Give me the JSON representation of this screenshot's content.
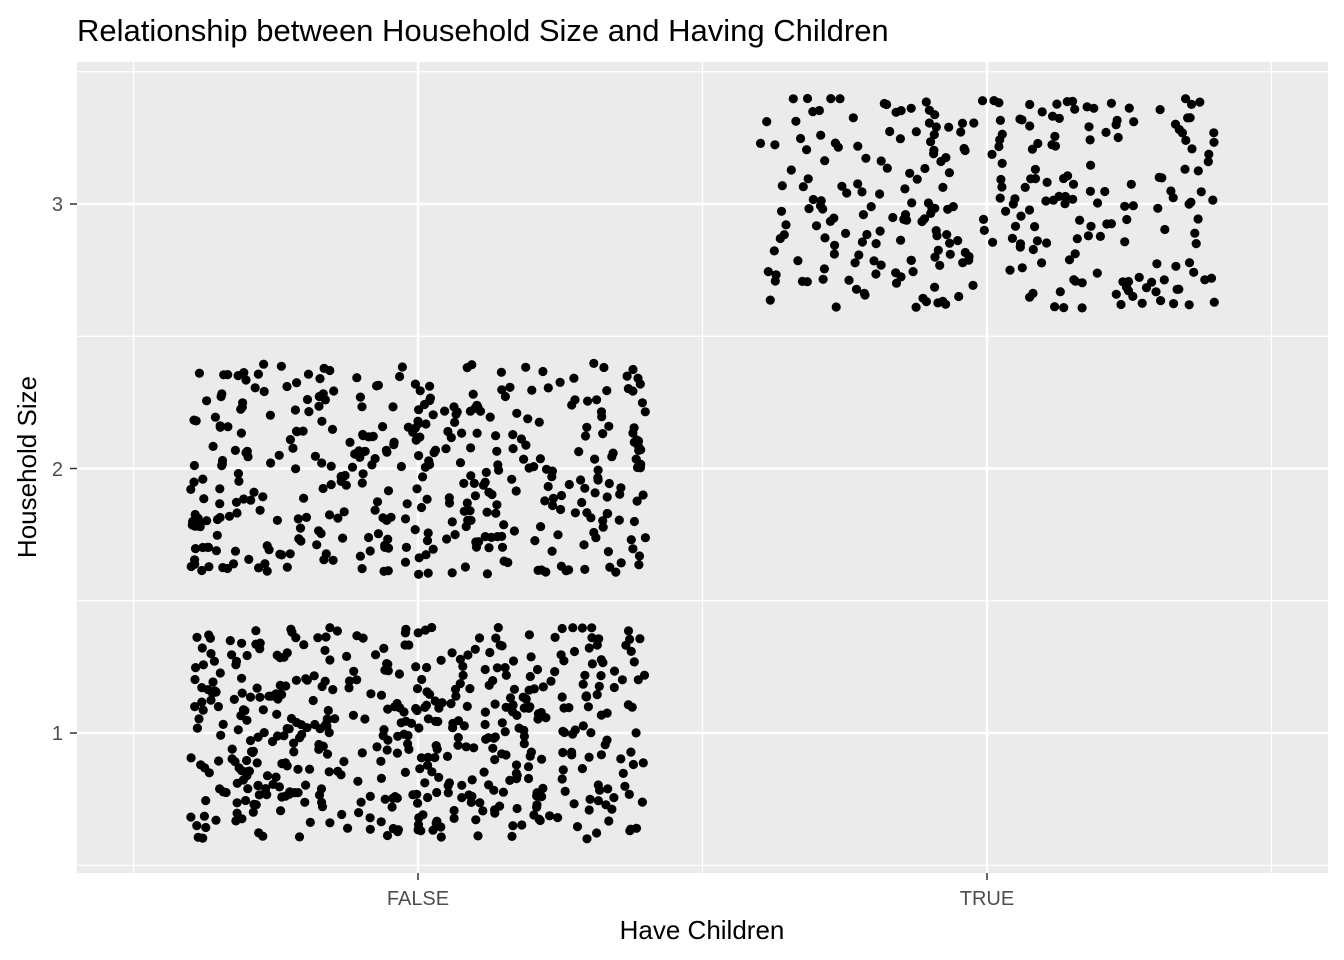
{
  "chart_data": {
    "type": "scatter",
    "jitter": true,
    "title": "Relationship between Household Size and Having Children",
    "xlabel": "Have Children",
    "ylabel": "Household Size",
    "categories": [
      "FALSE",
      "TRUE"
    ],
    "y_ticks": [
      1,
      2,
      3
    ],
    "ylim": [
      0.5,
      3.5
    ],
    "grid": true,
    "legend": "none",
    "colors": {
      "panel": "#ebebeb",
      "grid": "#ffffff",
      "point": "#000000",
      "tick_text": "#4d4d4d"
    },
    "groups": [
      {
        "x": "FALSE",
        "y": 1,
        "n": 500,
        "x_jitter": 0.4,
        "y_jitter": 0.4
      },
      {
        "x": "FALSE",
        "y": 2,
        "n": 400,
        "x_jitter": 0.4,
        "y_jitter": 0.4
      },
      {
        "x": "TRUE",
        "y": 3,
        "n": 300,
        "x_jitter": 0.4,
        "y_jitter": 0.4
      }
    ]
  }
}
